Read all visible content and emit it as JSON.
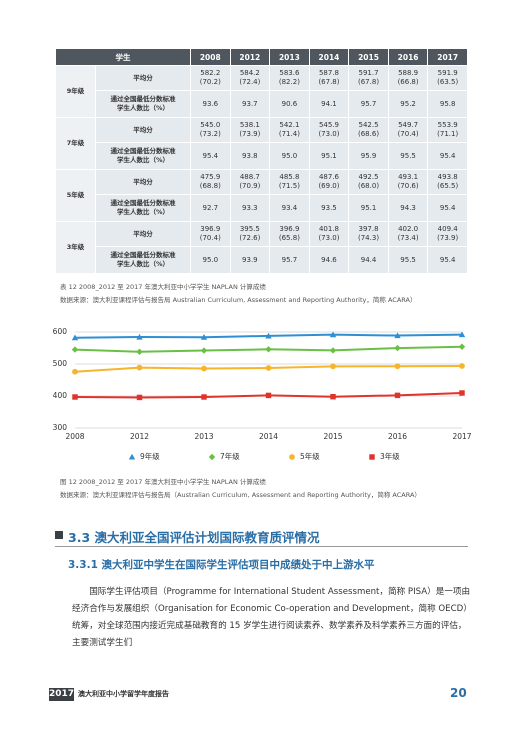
{
  "table": {
    "header": [
      "学生",
      "2008",
      "2012",
      "2013",
      "2014",
      "2015",
      "2016",
      "2017"
    ],
    "groups": [
      {
        "label": "9年级",
        "rows": [
          {
            "label": [
              "平均分"
            ],
            "cells": [
              [
                "582.2",
                "(70.2)"
              ],
              [
                "584.2",
                "(72.4)"
              ],
              [
                "583.6",
                "(82.2)"
              ],
              [
                "587.8",
                "(67.8)"
              ],
              [
                "591.7",
                "(67.8)"
              ],
              [
                "588.9",
                "(66.8)"
              ],
              [
                "591.9",
                "(63.5)"
              ]
            ]
          },
          {
            "label": [
              "通过全国最低分数标准",
              "学生人数比（%）"
            ],
            "cells": [
              [
                "93.6"
              ],
              [
                "93.7"
              ],
              [
                "90.6"
              ],
              [
                "94.1"
              ],
              [
                "95.7"
              ],
              [
                "95.2"
              ],
              [
                "95.8"
              ]
            ]
          }
        ]
      },
      {
        "label": "7年级",
        "rows": [
          {
            "label": [
              "平均分"
            ],
            "cells": [
              [
                "545.0",
                "(73.2)"
              ],
              [
                "538.1",
                "(73.9)"
              ],
              [
                "542.1",
                "(71.4)"
              ],
              [
                "545.9",
                "(73.0)"
              ],
              [
                "542.5",
                "(68.6)"
              ],
              [
                "549.7",
                "(70.4)"
              ],
              [
                "553.9",
                "(71.1)"
              ]
            ]
          },
          {
            "label": [
              "通过全国最低分数标准",
              "学生人数比（%）"
            ],
            "cells": [
              [
                "95.4"
              ],
              [
                "93.8"
              ],
              [
                "95.0"
              ],
              [
                "95.1"
              ],
              [
                "95.9"
              ],
              [
                "95.5"
              ],
              [
                "95.4"
              ]
            ]
          }
        ]
      },
      {
        "label": "5年级",
        "rows": [
          {
            "label": [
              "平均分"
            ],
            "cells": [
              [
                "475.9",
                "(68.8)"
              ],
              [
                "488.7",
                "(70.9)"
              ],
              [
                "485.8",
                "(71.5)"
              ],
              [
                "487.6",
                "(69.0)"
              ],
              [
                "492.5",
                "(68.0)"
              ],
              [
                "493.1",
                "(70.6)"
              ],
              [
                "493.8",
                "(65.5)"
              ]
            ]
          },
          {
            "label": [
              "通过全国最低分数标准",
              "学生人数比（%）"
            ],
            "cells": [
              [
                "92.7"
              ],
              [
                "93.3"
              ],
              [
                "93.4"
              ],
              [
                "93.5"
              ],
              [
                "95.1"
              ],
              [
                "94.3"
              ],
              [
                "95.4"
              ]
            ]
          }
        ]
      },
      {
        "label": "3年级",
        "rows": [
          {
            "label": [
              "平均分"
            ],
            "cells": [
              [
                "396.9",
                "(70.4)"
              ],
              [
                "395.5",
                "(72.6)"
              ],
              [
                "396.9",
                "(65.8)"
              ],
              [
                "401.8",
                "(73.0)"
              ],
              [
                "397.8",
                "(74.3)"
              ],
              [
                "402.0",
                "(73.4)"
              ],
              [
                "409.4",
                "(73.9)"
              ]
            ]
          },
          {
            "label": [
              "通过全国最低分数标准",
              "学生人数比（%）"
            ],
            "cells": [
              [
                "95.0"
              ],
              [
                "93.9"
              ],
              [
                "95.7"
              ],
              [
                "94.6"
              ],
              [
                "94.4"
              ],
              [
                "95.5"
              ],
              [
                "95.4"
              ]
            ]
          }
        ]
      }
    ]
  },
  "table_caption": "表 12 2008_2012 至 2017 年澳大利亚中小学学生 NAPLAN 计算成绩",
  "table_source": "数据来源：澳大利亚课程评估与报告局 Australian Curriculum, Assessment and Reporting Authority，简称 ACARA）",
  "chart_data": {
    "type": "line",
    "categories": [
      "2008",
      "2012",
      "2013",
      "2014",
      "2015",
      "2016",
      "2017"
    ],
    "series": [
      {
        "name": "9年级",
        "color": "#2e8fd3",
        "marker": "triangle",
        "values": [
          582.2,
          584.2,
          583.6,
          587.8,
          591.7,
          588.9,
          591.9
        ]
      },
      {
        "name": "7年级",
        "color": "#6abf45",
        "marker": "diamond",
        "values": [
          545.0,
          538.1,
          542.1,
          545.9,
          542.5,
          549.7,
          553.9
        ]
      },
      {
        "name": "5年级",
        "color": "#f7b52c",
        "marker": "circle",
        "values": [
          475.9,
          488.7,
          485.8,
          487.6,
          492.5,
          493.1,
          493.8
        ]
      },
      {
        "name": "3年级",
        "color": "#e0332b",
        "marker": "square",
        "values": [
          396.9,
          395.5,
          396.9,
          401.8,
          397.8,
          402.0,
          409.4
        ]
      }
    ],
    "ylim": [
      300,
      600
    ],
    "yticks": [
      300,
      400,
      500,
      600
    ],
    "grid": true
  },
  "chart_caption": "图 12 2008_2012 至 2017 年澳大利亚中小学学生 NAPLAN 计算成绩",
  "chart_source": "数据来源：澳大利亚课程评估与报告局（Australian Curriculum, Assessment and Reporting Authority，简称 ACARA）",
  "section": {
    "heading": "3.3 澳大利亚全国评估计划国际教育质评情况",
    "subheading": "3.3.1 澳大利亚中学生在国际学生评估项目中成绩处于中上游水平",
    "paragraph": "国际学生评估项目（Programme for International Student Assessment，简称 PISA）是一项由经济合作与发展组织（Organisation for Economic Co-operation and Development，简称 OECD）统筹，对全球范围内接近完成基础教育的 15 岁学生进行阅读素养、数学素养及科学素养三方面的评估，主要测试学生们"
  },
  "footer": {
    "year": "2017",
    "title": "澳大利亚中小学留学年度报告",
    "page": "20"
  }
}
